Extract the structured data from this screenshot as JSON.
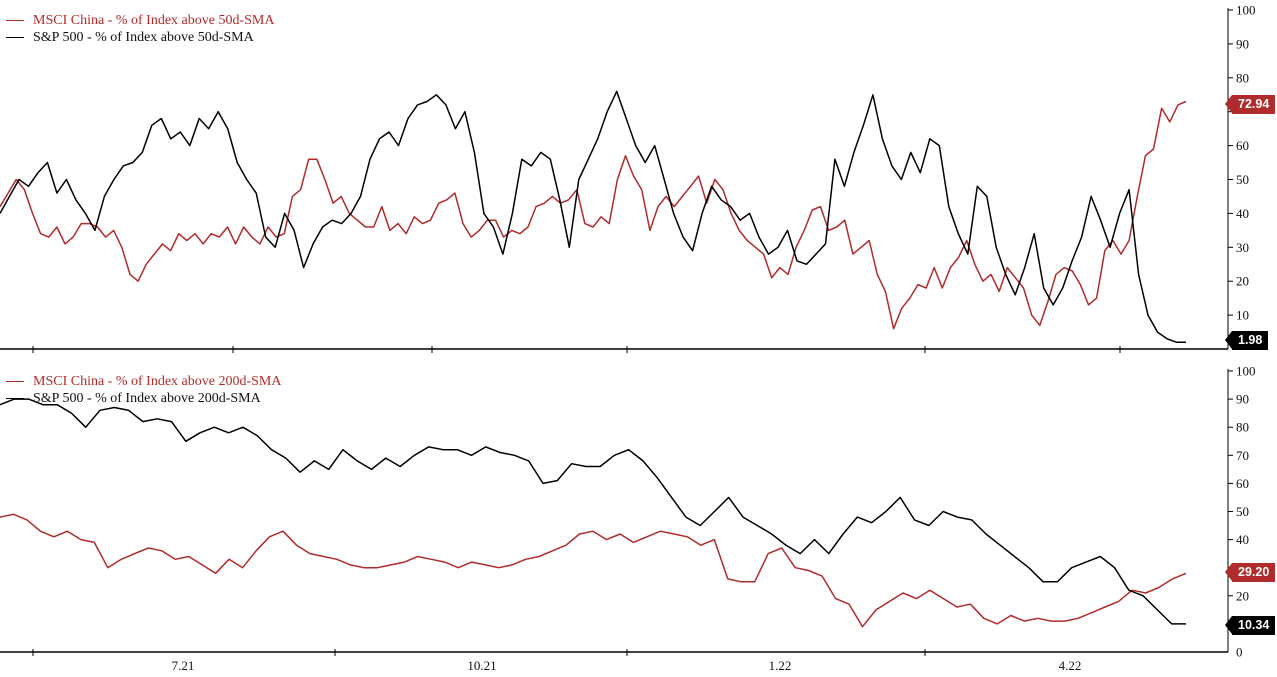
{
  "colors": {
    "china": "#b02b2b",
    "sp500": "#000000"
  },
  "chart_data": [
    {
      "type": "line",
      "ylim": [
        0,
        100
      ],
      "yticks": [
        10,
        20,
        30,
        40,
        50,
        60,
        70,
        80,
        90,
        100
      ],
      "legend": [
        "MSCI China - % of Index above 50d-SMA",
        "S&P 500 - % of Index above 50d-SMA"
      ],
      "last_values": {
        "china": "72.94",
        "sp500": "1.98"
      },
      "series": [
        {
          "name": "MSCI China - % of Index above 50d-SMA",
          "color": "#b02b2b",
          "values": [
            42,
            46,
            50,
            47,
            40,
            34,
            33,
            36,
            31,
            33,
            37,
            37,
            36,
            33,
            35,
            30,
            22,
            20,
            25,
            28,
            31,
            29,
            34,
            32,
            34,
            31,
            34,
            33,
            36,
            31,
            36,
            33,
            31,
            36,
            33,
            34,
            45,
            47,
            56,
            56,
            50,
            43,
            45,
            40,
            38,
            36,
            36,
            42,
            35,
            37,
            34,
            39,
            37,
            38,
            43,
            44,
            46,
            37,
            33,
            35,
            38,
            38,
            33,
            35,
            34,
            36,
            42,
            43,
            45,
            43,
            44,
            47,
            37,
            36,
            39,
            37,
            50,
            57,
            51,
            47,
            35,
            42,
            45,
            42,
            45,
            48,
            51,
            43,
            50,
            47,
            40,
            35,
            32,
            30,
            28,
            21,
            24,
            22,
            30,
            35,
            41,
            42,
            35,
            36,
            38,
            28,
            30,
            32,
            22,
            17,
            6,
            12,
            15,
            19,
            18,
            24,
            18,
            24,
            27,
            32,
            25,
            20,
            22,
            17,
            24,
            21,
            18,
            10,
            7,
            14,
            22,
            24,
            23,
            19,
            13,
            15,
            29,
            32,
            28,
            32,
            45,
            57,
            59,
            71,
            67,
            72,
            73
          ]
        },
        {
          "name": "S&P 500 - % of Index above 50d-SMA",
          "color": "#000000",
          "values": [
            40,
            45,
            50,
            48,
            52,
            55,
            46,
            50,
            44,
            40,
            35,
            45,
            50,
            54,
            55,
            58,
            66,
            68,
            62,
            64,
            60,
            68,
            65,
            70,
            65,
            55,
            50,
            46,
            33,
            30,
            40,
            35,
            24,
            31,
            36,
            38,
            37,
            40,
            45,
            56,
            62,
            64,
            60,
            68,
            72,
            73,
            75,
            72,
            65,
            70,
            58,
            40,
            36,
            28,
            40,
            56,
            54,
            58,
            56,
            44,
            30,
            50,
            56,
            62,
            70,
            76,
            68,
            60,
            55,
            60,
            50,
            40,
            33,
            29,
            40,
            48,
            44,
            42,
            38,
            40,
            33,
            28,
            30,
            35,
            26,
            25,
            28,
            31,
            56,
            48,
            58,
            66,
            75,
            62,
            54,
            50,
            58,
            52,
            62,
            60,
            42,
            34,
            28,
            48,
            45,
            30,
            22,
            16,
            24,
            34,
            18,
            13,
            18,
            26,
            33,
            45,
            38,
            30,
            40,
            47,
            22,
            10,
            5,
            3,
            2,
            2
          ]
        }
      ]
    },
    {
      "type": "line",
      "ylim": [
        0,
        100
      ],
      "yticks": [
        10,
        20,
        30,
        40,
        50,
        60,
        70,
        80,
        90,
        100
      ],
      "xticks": [
        "7.21",
        "10.21",
        "1.22",
        "4.22"
      ],
      "legend": [
        "MSCI China - % of Index above 200d-SMA",
        "S&P 500 - % of Index above 200d-SMA"
      ],
      "last_values": {
        "china": "29.20",
        "sp500": "10.34"
      },
      "series": [
        {
          "name": "MSCI China - % of Index above 200d-SMA",
          "color": "#b02b2b",
          "values": [
            48,
            49,
            47,
            43,
            41,
            43,
            40,
            39,
            30,
            33,
            35,
            37,
            36,
            33,
            34,
            31,
            28,
            33,
            30,
            36,
            41,
            43,
            38,
            35,
            34,
            33,
            31,
            30,
            30,
            31,
            32,
            34,
            33,
            32,
            30,
            32,
            31,
            30,
            31,
            33,
            34,
            36,
            38,
            42,
            43,
            40,
            42,
            39,
            41,
            43,
            42,
            41,
            38,
            40,
            26,
            25,
            25,
            35,
            37,
            30,
            29,
            27,
            19,
            17,
            9,
            15,
            18,
            21,
            19,
            22,
            19,
            16,
            17,
            12,
            10,
            13,
            11,
            12,
            11,
            11,
            12,
            14,
            16,
            18,
            22,
            21,
            23,
            26,
            28
          ]
        },
        {
          "name": "S&P 500 - % of Index above 200d-SMA",
          "color": "#000000",
          "values": [
            88,
            90,
            90,
            88,
            88,
            85,
            80,
            86,
            87,
            86,
            82,
            83,
            82,
            75,
            78,
            80,
            78,
            80,
            77,
            72,
            69,
            64,
            68,
            65,
            72,
            68,
            65,
            69,
            66,
            70,
            73,
            72,
            72,
            70,
            73,
            71,
            70,
            68,
            60,
            61,
            67,
            66,
            66,
            70,
            72,
            68,
            62,
            55,
            48,
            45,
            50,
            55,
            48,
            45,
            42,
            38,
            35,
            40,
            35,
            42,
            48,
            46,
            50,
            55,
            47,
            45,
            50,
            48,
            47,
            42,
            38,
            34,
            30,
            25,
            25,
            30,
            32,
            34,
            30,
            22,
            20,
            15,
            10,
            10
          ]
        }
      ]
    }
  ]
}
